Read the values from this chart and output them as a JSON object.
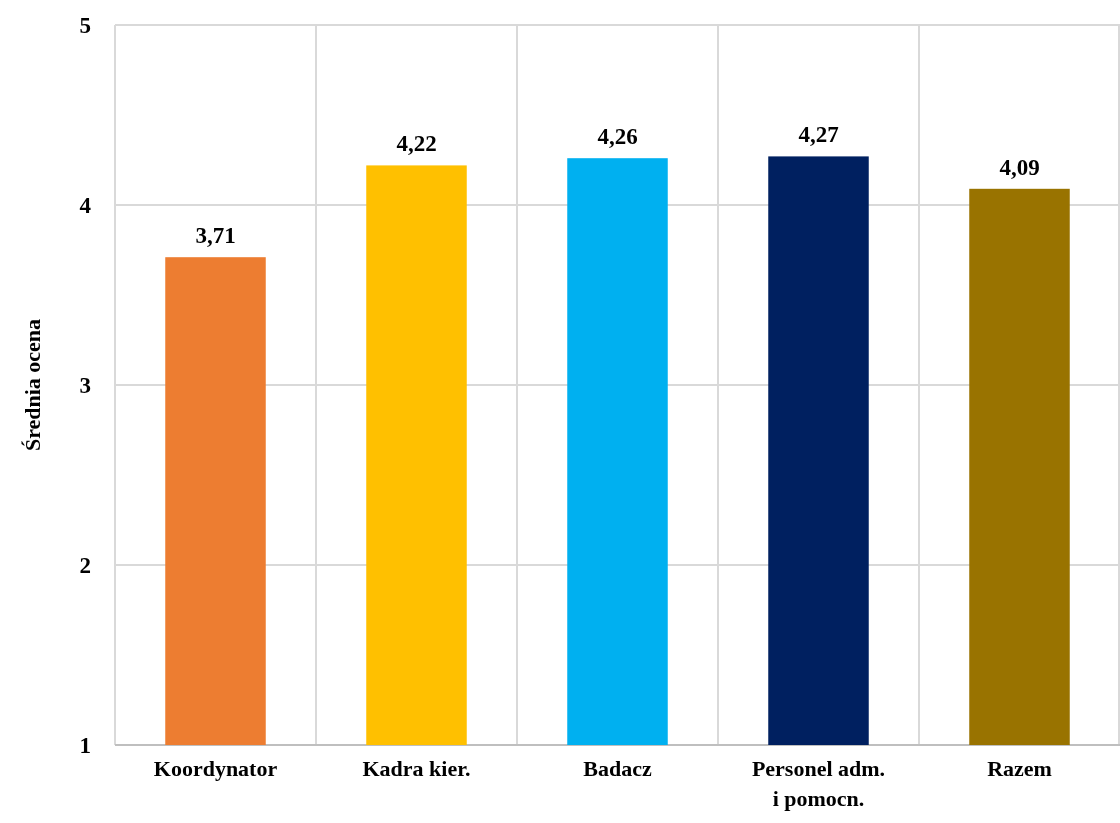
{
  "chart_data": {
    "type": "bar",
    "ylabel": "Średnia ocena",
    "categories": [
      "Koordynator",
      "Kadra kier.",
      "Badacz",
      "Personel adm.\ni pomocn.",
      "Razem"
    ],
    "values": [
      3.71,
      4.22,
      4.26,
      4.27,
      4.09
    ],
    "value_labels": [
      "3,71",
      "4,22",
      "4,26",
      "4,27",
      "4,09"
    ],
    "colors": [
      "#ed7d31",
      "#ffc000",
      "#00b0f0",
      "#002060",
      "#997300"
    ],
    "ylim": [
      1,
      5
    ],
    "yticks": [
      1,
      2,
      3,
      4,
      5
    ],
    "grid": true
  }
}
